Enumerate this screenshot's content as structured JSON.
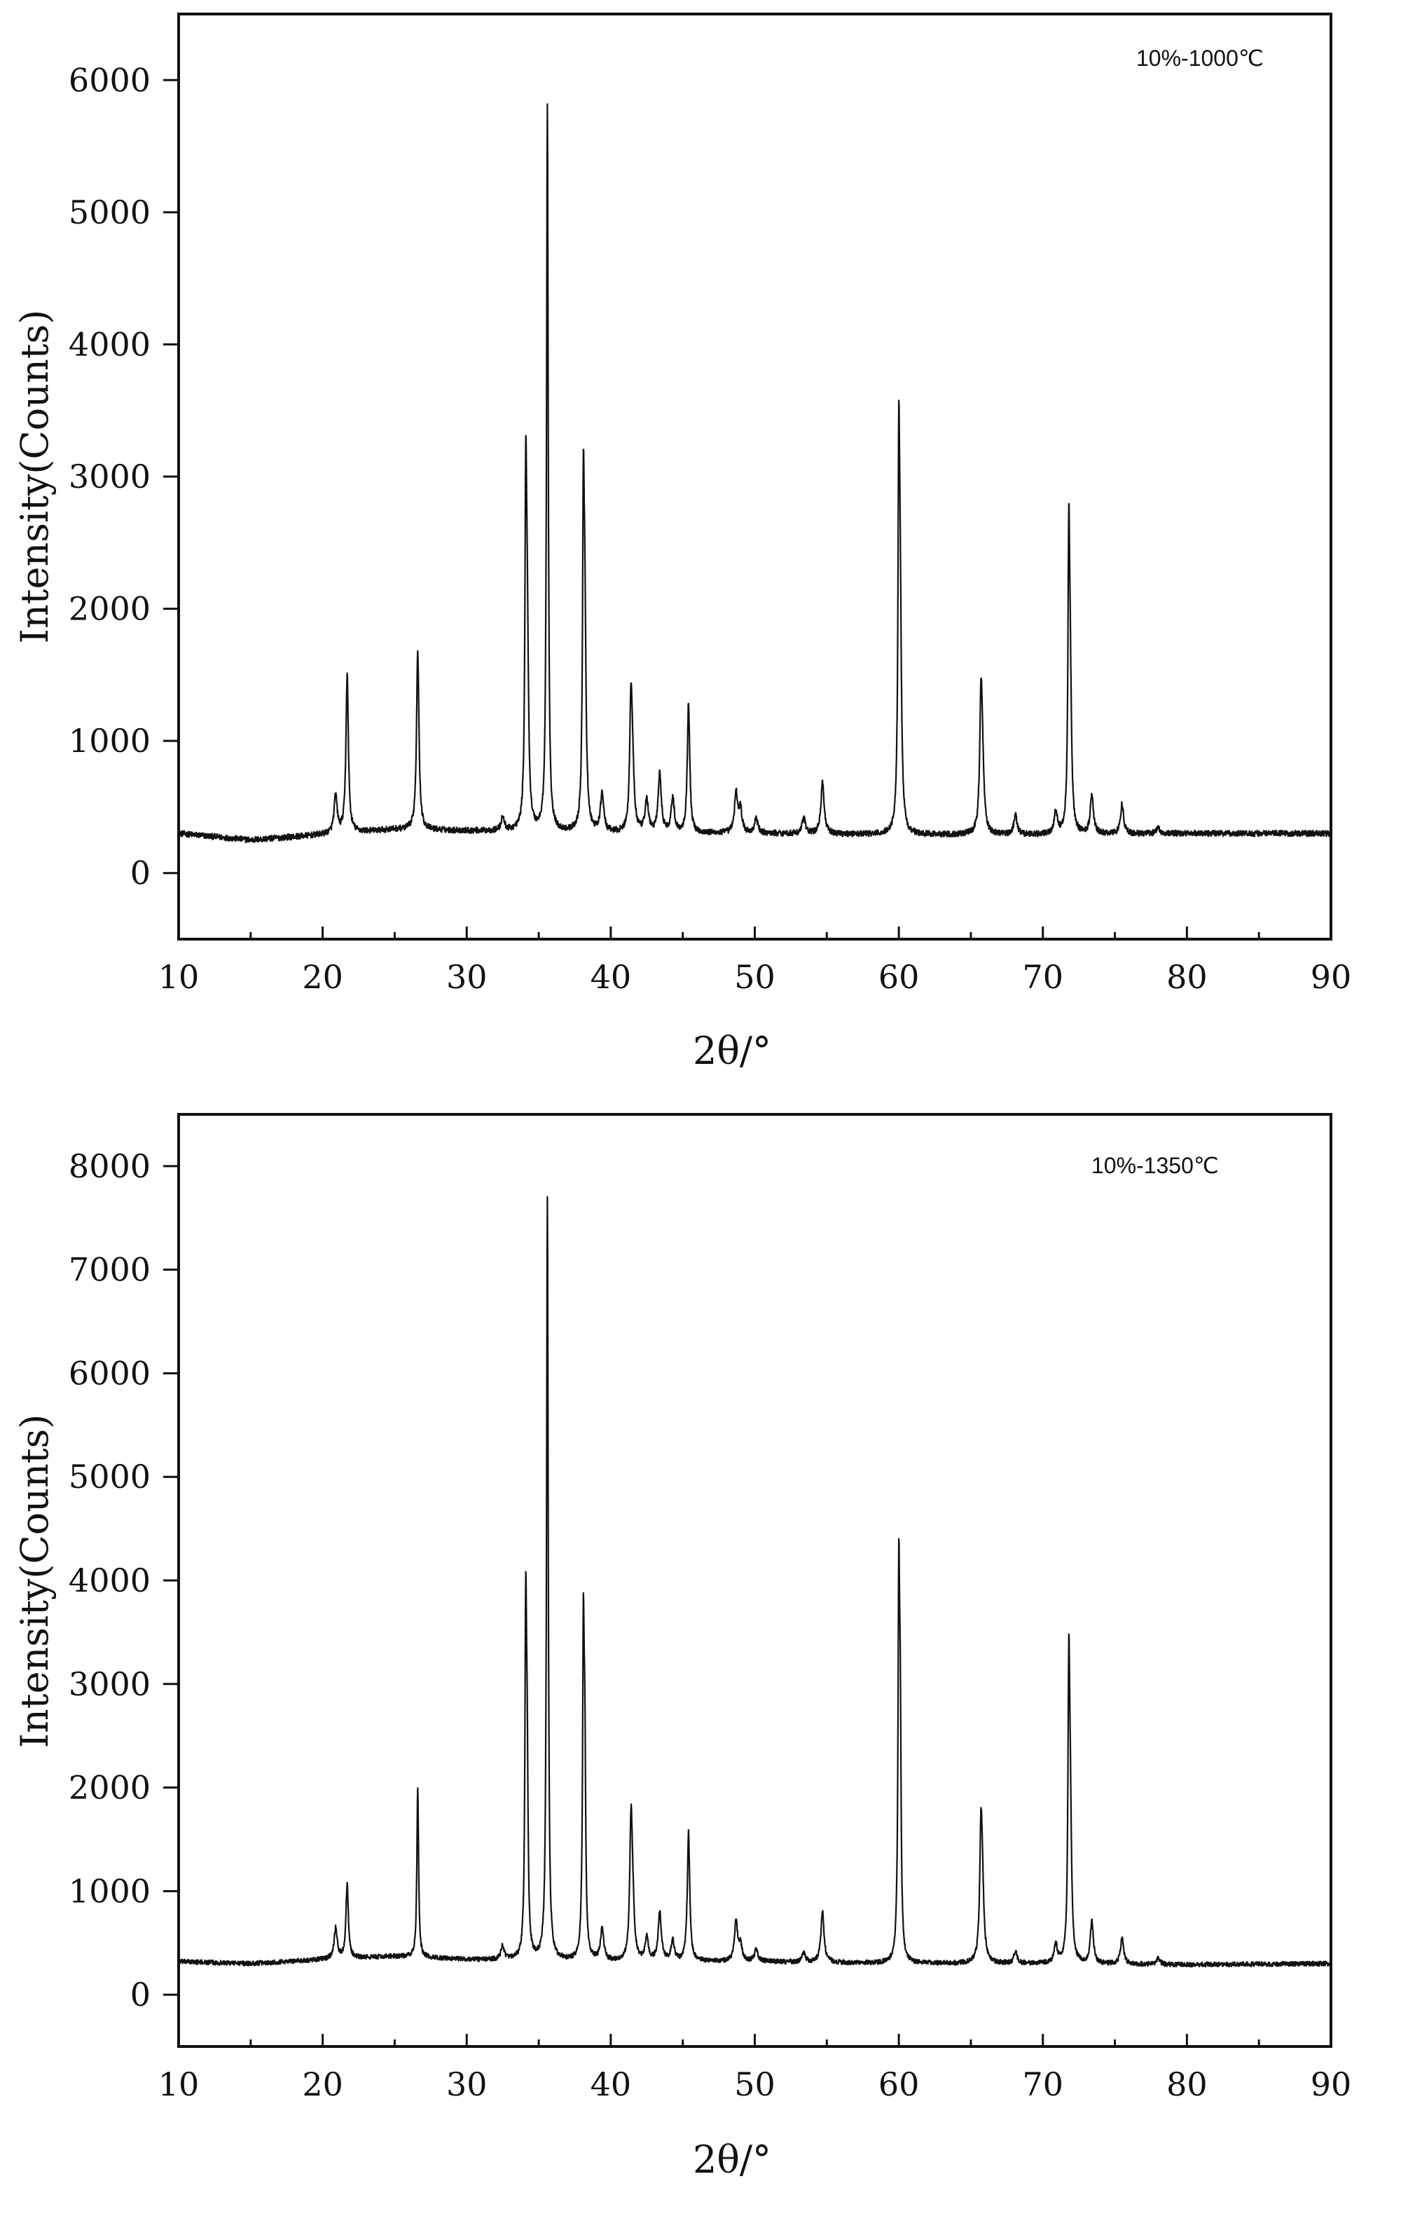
{
  "chart_data": [
    {
      "type": "line",
      "annotation": "10%-1000℃",
      "xlabel": "2θ/°",
      "ylabel": "Intensity(Counts)",
      "xlim": [
        10,
        90
      ],
      "ylim": [
        -500,
        6500
      ],
      "xticks": [
        "10",
        "20",
        "30",
        "40",
        "50",
        "60",
        "70",
        "80",
        "90"
      ],
      "yticks": [
        "0",
        "1000",
        "2000",
        "3000",
        "4000",
        "5000",
        "6000"
      ],
      "baseline": [
        [
          10,
          300
        ],
        [
          15,
          250
        ],
        [
          20,
          290
        ],
        [
          25,
          330
        ],
        [
          30,
          320
        ],
        [
          40,
          300
        ],
        [
          50,
          300
        ],
        [
          60,
          290
        ],
        [
          70,
          290
        ],
        [
          80,
          300
        ],
        [
          90,
          300
        ]
      ],
      "peaks": [
        {
          "x": 20.9,
          "y": 580
        },
        {
          "x": 21.7,
          "y": 1500
        },
        {
          "x": 26.6,
          "y": 1690
        },
        {
          "x": 32.5,
          "y": 420
        },
        {
          "x": 34.1,
          "y": 2560
        },
        {
          "x": 34.2,
          "y": 1750
        },
        {
          "x": 35.6,
          "y": 5800
        },
        {
          "x": 38.1,
          "y": 2480
        },
        {
          "x": 38.2,
          "y": 1750
        },
        {
          "x": 39.4,
          "y": 600
        },
        {
          "x": 41.4,
          "y": 1150
        },
        {
          "x": 41.5,
          "y": 750
        },
        {
          "x": 42.5,
          "y": 550
        },
        {
          "x": 43.4,
          "y": 740
        },
        {
          "x": 44.3,
          "y": 560
        },
        {
          "x": 45.4,
          "y": 1290
        },
        {
          "x": 48.7,
          "y": 600
        },
        {
          "x": 49.0,
          "y": 470
        },
        {
          "x": 50.1,
          "y": 410
        },
        {
          "x": 53.4,
          "y": 420
        },
        {
          "x": 54.7,
          "y": 690
        },
        {
          "x": 60.0,
          "y": 2860
        },
        {
          "x": 60.1,
          "y": 1750
        },
        {
          "x": 65.7,
          "y": 1170
        },
        {
          "x": 65.8,
          "y": 760
        },
        {
          "x": 68.1,
          "y": 440
        },
        {
          "x": 70.9,
          "y": 460
        },
        {
          "x": 71.8,
          "y": 2290
        },
        {
          "x": 71.9,
          "y": 1330
        },
        {
          "x": 73.4,
          "y": 580
        },
        {
          "x": 75.5,
          "y": 520
        },
        {
          "x": 78.0,
          "y": 350
        }
      ]
    },
    {
      "type": "line",
      "annotation": "10%-1350℃",
      "xlabel": "2θ/°",
      "ylabel": "Intensity(Counts)",
      "xlim": [
        10,
        90
      ],
      "ylim": [
        -500,
        8500
      ],
      "xticks": [
        "10",
        "20",
        "30",
        "40",
        "50",
        "60",
        "70",
        "80",
        "90"
      ],
      "yticks": [
        "0",
        "1000",
        "2000",
        "3000",
        "4000",
        "5000",
        "6000",
        "7000",
        "8000"
      ],
      "baseline": [
        [
          10,
          320
        ],
        [
          15,
          300
        ],
        [
          20,
          340
        ],
        [
          25,
          370
        ],
        [
          30,
          340
        ],
        [
          40,
          320
        ],
        [
          50,
          320
        ],
        [
          60,
          300
        ],
        [
          70,
          300
        ],
        [
          80,
          290
        ],
        [
          90,
          300
        ]
      ],
      "peaks": [
        {
          "x": 20.9,
          "y": 640
        },
        {
          "x": 21.7,
          "y": 1070
        },
        {
          "x": 26.6,
          "y": 2000
        },
        {
          "x": 32.5,
          "y": 470
        },
        {
          "x": 34.1,
          "y": 3540
        },
        {
          "x": 34.2,
          "y": 1900
        },
        {
          "x": 35.6,
          "y": 7670
        },
        {
          "x": 38.1,
          "y": 3300
        },
        {
          "x": 38.2,
          "y": 2000
        },
        {
          "x": 39.4,
          "y": 640
        },
        {
          "x": 41.4,
          "y": 1430
        },
        {
          "x": 41.5,
          "y": 900
        },
        {
          "x": 42.5,
          "y": 540
        },
        {
          "x": 43.4,
          "y": 790
        },
        {
          "x": 44.3,
          "y": 520
        },
        {
          "x": 45.4,
          "y": 1570
        },
        {
          "x": 48.7,
          "y": 700
        },
        {
          "x": 49.0,
          "y": 470
        },
        {
          "x": 50.1,
          "y": 440
        },
        {
          "x": 53.4,
          "y": 400
        },
        {
          "x": 54.7,
          "y": 800
        },
        {
          "x": 60.0,
          "y": 3800
        },
        {
          "x": 60.1,
          "y": 2150
        },
        {
          "x": 65.7,
          "y": 1420
        },
        {
          "x": 65.8,
          "y": 900
        },
        {
          "x": 68.1,
          "y": 420
        },
        {
          "x": 70.9,
          "y": 480
        },
        {
          "x": 71.8,
          "y": 2780
        },
        {
          "x": 71.9,
          "y": 1680
        },
        {
          "x": 73.4,
          "y": 700
        },
        {
          "x": 75.5,
          "y": 540
        },
        {
          "x": 78.0,
          "y": 360
        }
      ]
    }
  ]
}
